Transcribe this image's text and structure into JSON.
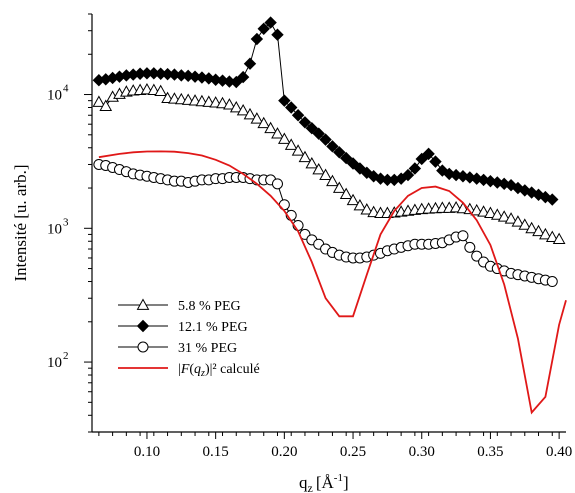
{
  "chart_data": {
    "type": "line",
    "xlabel": "q",
    "xlabel_subscript": "z",
    "xlabel_unit": "[Å",
    "xlabel_unit_sup": "-1",
    "xlabel_unit_end": "]",
    "ylabel": "Intensité [u. arb.]",
    "y_scale": "log",
    "xlim": [
      0.06,
      0.405
    ],
    "ylim": [
      30,
      40000
    ],
    "x_ticks": [
      {
        "value": 0.1,
        "label": "0.10"
      },
      {
        "value": 0.15,
        "label": "0.15"
      },
      {
        "value": 0.2,
        "label": "0.20"
      },
      {
        "value": 0.25,
        "label": "0.25"
      },
      {
        "value": 0.3,
        "label": "0.30"
      },
      {
        "value": 0.35,
        "label": "0.35"
      },
      {
        "value": 0.4,
        "label": "0.40"
      }
    ],
    "y_ticks": [
      {
        "value": 100,
        "base": "10",
        "exp": "2"
      },
      {
        "value": 1000,
        "base": "10",
        "exp": "3"
      },
      {
        "value": 10000,
        "base": "10",
        "exp": "4"
      }
    ],
    "legend_position": "bottom-left",
    "series": [
      {
        "name": "5.8 % PEG",
        "marker": "triangle-open",
        "color": "#000000",
        "x": [
          0.065,
          0.07,
          0.075,
          0.08,
          0.085,
          0.09,
          0.095,
          0.1,
          0.105,
          0.11,
          0.115,
          0.12,
          0.125,
          0.13,
          0.135,
          0.14,
          0.145,
          0.15,
          0.155,
          0.16,
          0.165,
          0.17,
          0.175,
          0.18,
          0.185,
          0.19,
          0.195,
          0.2,
          0.205,
          0.21,
          0.215,
          0.22,
          0.225,
          0.23,
          0.235,
          0.24,
          0.245,
          0.25,
          0.255,
          0.26,
          0.265,
          0.27,
          0.275,
          0.28,
          0.285,
          0.29,
          0.295,
          0.3,
          0.305,
          0.31,
          0.315,
          0.32,
          0.325,
          0.33,
          0.335,
          0.34,
          0.345,
          0.35,
          0.355,
          0.36,
          0.365,
          0.37,
          0.375,
          0.38,
          0.385,
          0.39,
          0.395,
          0.4
        ],
        "values": [
          8800,
          8200,
          9600,
          10100,
          10500,
          10700,
          10800,
          10900,
          10800,
          10600,
          9400,
          9300,
          9200,
          9100,
          9000,
          8900,
          8800,
          8700,
          8600,
          8400,
          8000,
          7600,
          7100,
          6600,
          6100,
          5600,
          5100,
          4650,
          4200,
          3800,
          3400,
          3050,
          2750,
          2500,
          2250,
          2000,
          1800,
          1620,
          1480,
          1380,
          1320,
          1300,
          1300,
          1310,
          1330,
          1350,
          1370,
          1390,
          1400,
          1410,
          1420,
          1420,
          1430,
          1410,
          1390,
          1360,
          1330,
          1300,
          1260,
          1220,
          1180,
          1120,
          1060,
          1000,
          950,
          900,
          860,
          830
        ]
      },
      {
        "name": "12.1 % PEG",
        "marker": "diamond-filled",
        "color": "#000000",
        "x": [
          0.065,
          0.07,
          0.075,
          0.08,
          0.085,
          0.09,
          0.095,
          0.1,
          0.105,
          0.11,
          0.115,
          0.12,
          0.125,
          0.13,
          0.135,
          0.14,
          0.145,
          0.15,
          0.155,
          0.16,
          0.165,
          0.17,
          0.175,
          0.18,
          0.185,
          0.19,
          0.195,
          0.2,
          0.205,
          0.21,
          0.215,
          0.22,
          0.225,
          0.23,
          0.235,
          0.24,
          0.245,
          0.25,
          0.255,
          0.26,
          0.265,
          0.27,
          0.275,
          0.28,
          0.285,
          0.29,
          0.295,
          0.3,
          0.305,
          0.31,
          0.315,
          0.32,
          0.325,
          0.33,
          0.335,
          0.34,
          0.345,
          0.35,
          0.355,
          0.36,
          0.365,
          0.37,
          0.375,
          0.38,
          0.385,
          0.39,
          0.395
        ],
        "values": [
          12800,
          13000,
          13300,
          13600,
          13900,
          14100,
          14300,
          14400,
          14400,
          14300,
          14200,
          14100,
          13900,
          13800,
          13600,
          13400,
          13200,
          12900,
          12700,
          12500,
          12400,
          13500,
          17000,
          26000,
          31000,
          34500,
          28000,
          9000,
          8000,
          7000,
          6200,
          5600,
          5100,
          4600,
          4100,
          3700,
          3350,
          3050,
          2800,
          2600,
          2450,
          2350,
          2300,
          2300,
          2350,
          2500,
          2800,
          3300,
          3600,
          3150,
          2700,
          2550,
          2500,
          2450,
          2400,
          2350,
          2300,
          2250,
          2200,
          2150,
          2100,
          2000,
          1920,
          1850,
          1780,
          1710,
          1640
        ]
      },
      {
        "name": "31 % PEG",
        "marker": "circle-open",
        "color": "#000000",
        "x": [
          0.065,
          0.07,
          0.075,
          0.08,
          0.085,
          0.09,
          0.095,
          0.1,
          0.105,
          0.11,
          0.115,
          0.12,
          0.125,
          0.13,
          0.135,
          0.14,
          0.145,
          0.15,
          0.155,
          0.16,
          0.165,
          0.17,
          0.175,
          0.18,
          0.185,
          0.19,
          0.195,
          0.2,
          0.205,
          0.21,
          0.215,
          0.22,
          0.225,
          0.23,
          0.235,
          0.24,
          0.245,
          0.25,
          0.255,
          0.26,
          0.265,
          0.27,
          0.275,
          0.28,
          0.285,
          0.29,
          0.295,
          0.3,
          0.305,
          0.31,
          0.315,
          0.32,
          0.325,
          0.33,
          0.335,
          0.34,
          0.345,
          0.35,
          0.355,
          0.36,
          0.365,
          0.37,
          0.375,
          0.38,
          0.385,
          0.39,
          0.395
        ],
        "values": [
          3000,
          2950,
          2850,
          2750,
          2650,
          2550,
          2500,
          2450,
          2400,
          2350,
          2300,
          2250,
          2250,
          2200,
          2250,
          2300,
          2300,
          2350,
          2350,
          2400,
          2400,
          2400,
          2350,
          2300,
          2300,
          2300,
          2150,
          1500,
          1250,
          1050,
          900,
          820,
          760,
          700,
          660,
          630,
          610,
          600,
          600,
          610,
          630,
          650,
          680,
          700,
          720,
          740,
          760,
          760,
          760,
          770,
          780,
          820,
          860,
          880,
          720,
          620,
          560,
          520,
          500,
          480,
          460,
          450,
          440,
          430,
          420,
          410,
          400
        ]
      },
      {
        "name": "|F(q_z)|² calculé",
        "marker": "none",
        "color": "#e01818",
        "x": [
          0.065,
          0.08,
          0.09,
          0.1,
          0.11,
          0.12,
          0.13,
          0.14,
          0.15,
          0.16,
          0.17,
          0.18,
          0.19,
          0.2,
          0.21,
          0.22,
          0.23,
          0.24,
          0.25,
          0.26,
          0.27,
          0.28,
          0.29,
          0.3,
          0.31,
          0.32,
          0.33,
          0.34,
          0.35,
          0.36,
          0.37,
          0.38,
          0.39,
          0.4,
          0.405
        ],
        "values": [
          3400,
          3600,
          3700,
          3750,
          3760,
          3740,
          3650,
          3500,
          3250,
          2950,
          2550,
          2150,
          1750,
          1350,
          950,
          560,
          300,
          220,
          220,
          450,
          900,
          1350,
          1750,
          2000,
          2050,
          1900,
          1550,
          1150,
          750,
          380,
          150,
          42,
          55,
          190,
          290
        ]
      }
    ]
  }
}
